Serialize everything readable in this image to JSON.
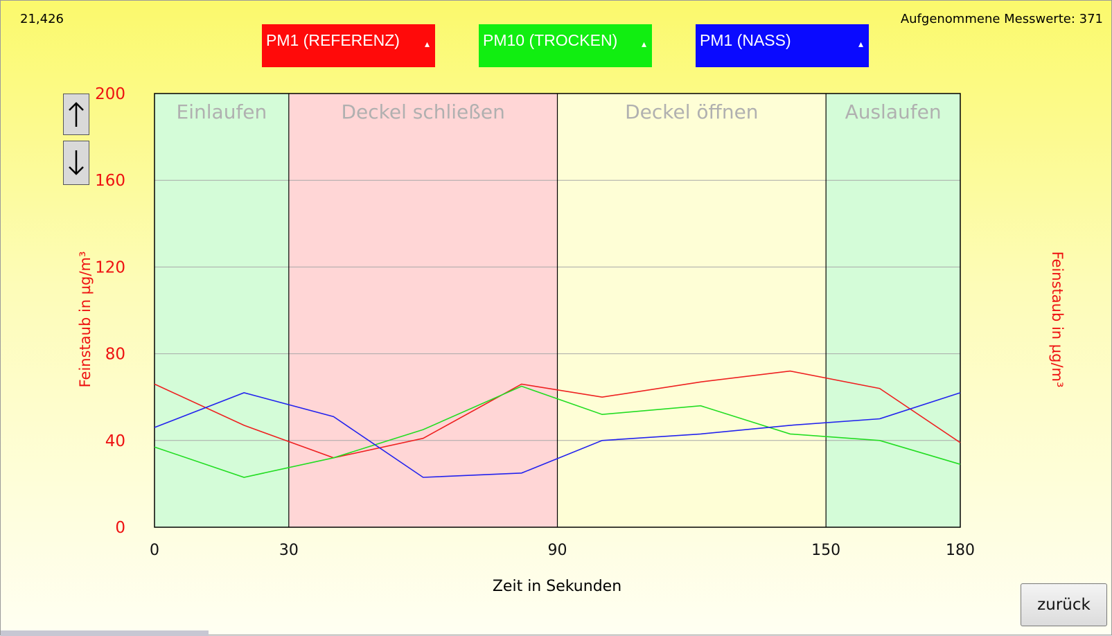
{
  "header": {
    "cursor_value": "21,426",
    "sample_count": "Aufgenommene Messwerte: 371"
  },
  "selectors": [
    {
      "label": "PM1 (REFERENZ)",
      "color": "#ff0a0a",
      "caret": "▴"
    },
    {
      "label": "PM10 (TROCKEN)",
      "color": "#11ee11",
      "caret": "▴"
    },
    {
      "label": "PM1 (NASS)",
      "color": "#0a0aff",
      "caret": "▴"
    }
  ],
  "controls": {
    "up_icon": "arrow-up-icon",
    "down_icon": "arrow-down-icon",
    "back_label": "zurück"
  },
  "chart_data": {
    "type": "line",
    "xlabel": "Zeit in Sekunden",
    "ylabel": "Feinstaub in µg/m³",
    "ylabel_right": "Feinstaub in µg/m³",
    "xlim": [
      0,
      180
    ],
    "ylim": [
      0,
      200
    ],
    "yticks": [
      0,
      40,
      80,
      120,
      160,
      200
    ],
    "xticks": [
      0,
      30,
      90,
      150,
      180
    ],
    "grid": true,
    "phases": [
      {
        "label": "Einlaufen",
        "from": 0,
        "to": 30,
        "color": "#d4fcd8"
      },
      {
        "label": "Deckel schließen",
        "from": 30,
        "to": 90,
        "color": "#ffd6d6"
      },
      {
        "label": "Deckel öffnen",
        "from": 90,
        "to": 150,
        "color": "#fefed6"
      },
      {
        "label": "Auslaufen",
        "from": 150,
        "to": 180,
        "color": "#d4fcd8"
      }
    ],
    "x": [
      0,
      20,
      40,
      60,
      82,
      100,
      122,
      142,
      162,
      180
    ],
    "series": [
      {
        "color": "#ee2020",
        "values": [
          66,
          47,
          32,
          41,
          66,
          60,
          67,
          72,
          64,
          39
        ]
      },
      {
        "color": "#22dd22",
        "values": [
          37,
          23,
          32,
          45,
          65,
          52,
          56,
          43,
          40,
          29
        ]
      },
      {
        "color": "#2222ee",
        "values": [
          46,
          62,
          51,
          23,
          25,
          40,
          43,
          47,
          50,
          62
        ]
      }
    ]
  }
}
